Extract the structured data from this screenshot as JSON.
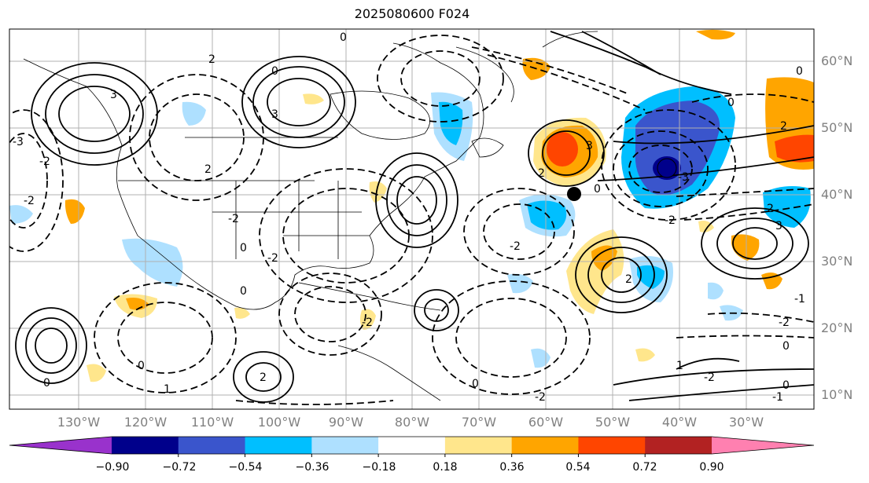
{
  "title": "2025080600 F024",
  "longitude_labels": [
    "130°W",
    "120°W",
    "110°W",
    "100°W",
    "90°W",
    "80°W",
    "70°W",
    "60°W",
    "50°W",
    "40°W",
    "30°W"
  ],
  "latitude_labels": [
    "60°N",
    "50°N",
    "40°N",
    "30°N",
    "20°N",
    "10°N"
  ],
  "colorbar": {
    "colors": [
      "#9932cc",
      "#00008b",
      "#3a55cc",
      "#00bfff",
      "#aee0ff",
      "#ffffff",
      "#ffe68c",
      "#ffa500",
      "#ff4500",
      "#b22222",
      "#ff80b0"
    ],
    "tick_labels": [
      "−0.90",
      "−0.72",
      "−0.54",
      "−0.36",
      "−0.18",
      "0.18",
      "0.36",
      "0.54",
      "0.72",
      "0.90"
    ],
    "extend": "both"
  },
  "contour_labels": [
    "0",
    "0",
    "3",
    "3",
    "2",
    "2",
    "-2",
    "-2",
    "0",
    "-2",
    "-3",
    "3",
    "-3",
    "0",
    "2",
    "-2",
    "0",
    "2",
    "-2",
    "1",
    "-2",
    "0",
    "-1",
    "0",
    "2",
    "-2",
    "0",
    "-2",
    "2",
    "0",
    "-1",
    "0",
    "1",
    "-2",
    "3",
    "-2",
    "2",
    "0",
    "0"
  ],
  "center_markers": [
    "low-center-marker",
    "high-center-marker"
  ]
}
